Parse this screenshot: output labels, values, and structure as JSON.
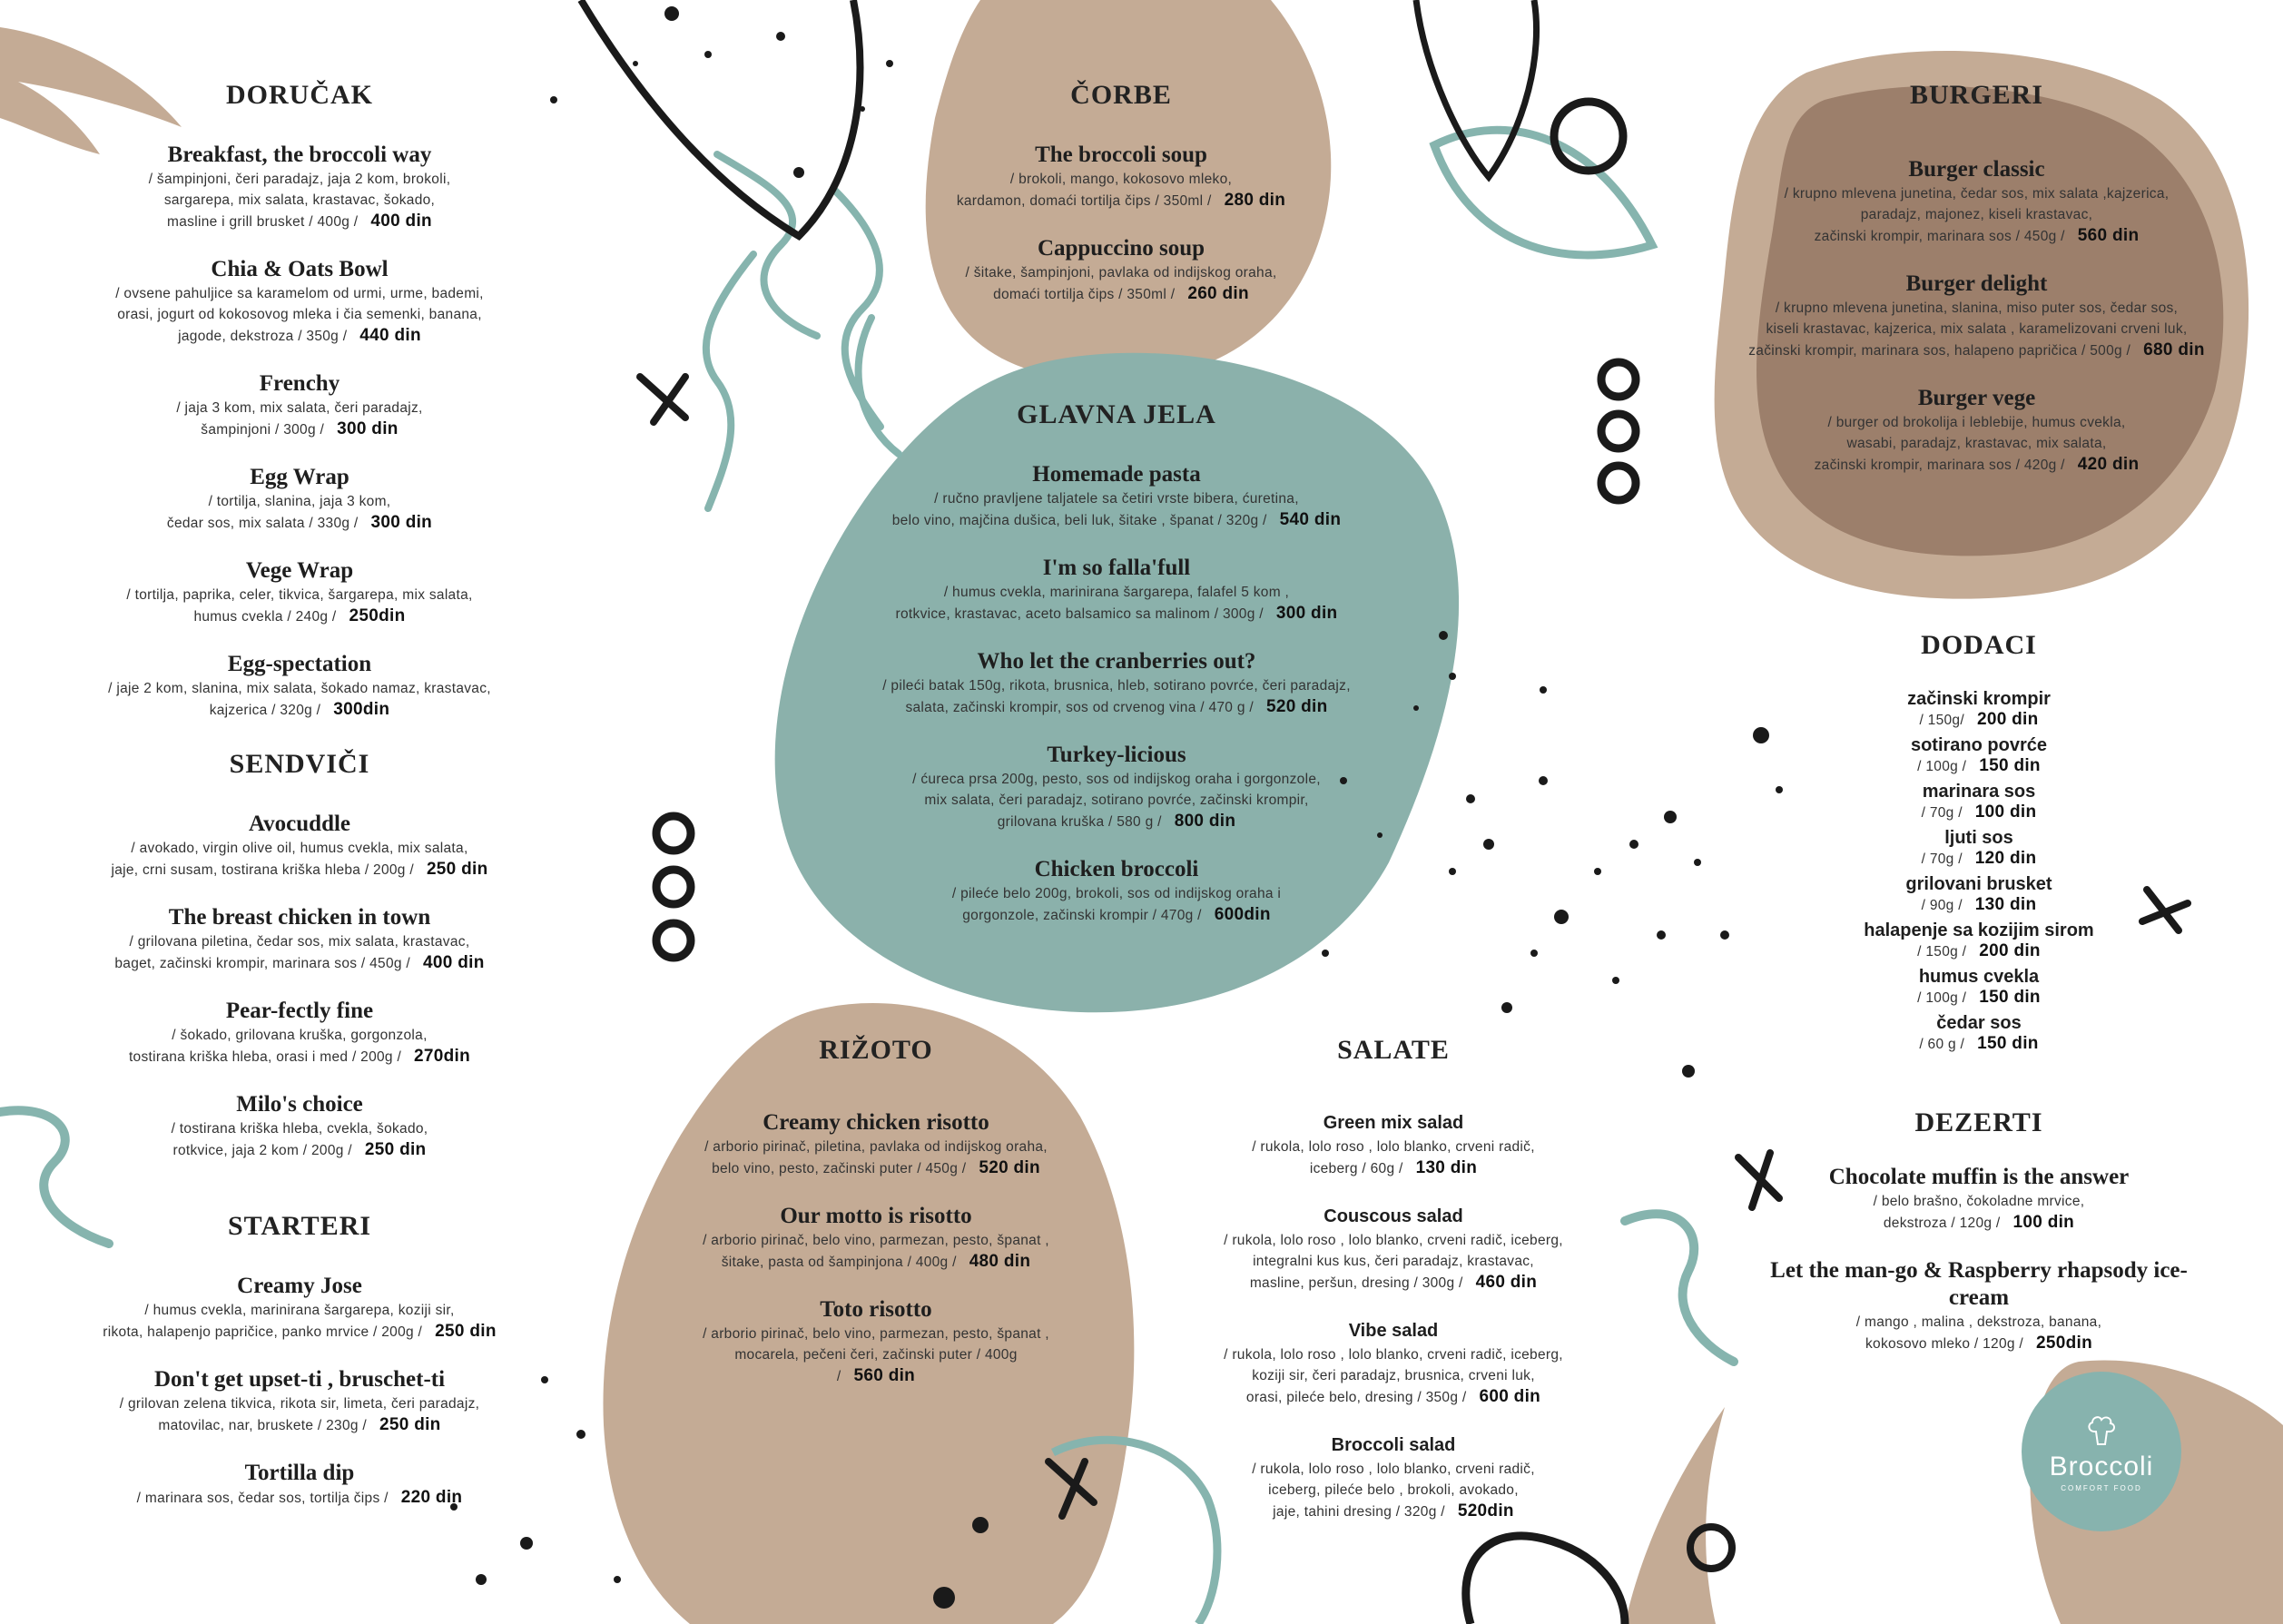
{
  "colors": {
    "beige": "#c4ab95",
    "brown": "#9c7f6b",
    "teal": "#8bb1ab",
    "teal_line": "#86b4ae",
    "ink": "#1a1a1a"
  },
  "sections": {
    "dorucak": {
      "title": "DORUČAK",
      "items": [
        {
          "name": "Breakfast, the broccoli way",
          "lines": [
            "/ šampinjoni, čeri paradajz, jaja 2 kom, brokoli,",
            "sargarepa, mix salata, krastavac, šokado,",
            "masline i grill brusket / 400g /"
          ],
          "price": "400 din"
        },
        {
          "name": "Chia & Oats Bowl",
          "lines": [
            "/ ovsene pahuljice sa karamelom od urmi, urme, bademi,",
            "orasi, jogurt od kokosovog mleka i čia semenki, banana,",
            "jagode, dekstroza / 350g /"
          ],
          "price": "440 din"
        },
        {
          "name": "Frenchy",
          "lines": [
            "/ jaja 3 kom, mix salata, čeri paradajz,",
            "šampinjoni / 300g /"
          ],
          "price": "300 din"
        },
        {
          "name": "Egg Wrap",
          "lines": [
            "/ tortilja, slanina, jaja 3 kom,",
            "čedar sos, mix salata / 330g /"
          ],
          "price": "300 din"
        },
        {
          "name": "Vege Wrap",
          "lines": [
            "/ tortilja, paprika, celer, tikvica, šargarepa, mix salata,",
            "humus cvekla / 240g /"
          ],
          "price": "250din"
        },
        {
          "name": "Egg-spectation",
          "lines": [
            "/ jaje 2 kom, slanina, mix salata, šokado namaz, krastavac,",
            "kajzerica / 320g /"
          ],
          "price": "300din"
        }
      ]
    },
    "sendvici": {
      "title": "SENDVIČI",
      "items": [
        {
          "name": "Avocuddle",
          "lines": [
            "/ avokado, virgin olive oil, humus cvekla, mix salata,",
            "jaje, crni susam, tostirana kriška hleba  / 200g /"
          ],
          "price": "250 din"
        },
        {
          "name": "The breast chicken in town",
          "lines": [
            "/ grilovana piletina, čedar sos, mix salata, krastavac,",
            "baget, začinski krompir, marinara sos / 450g /"
          ],
          "price": "400 din"
        },
        {
          "name": "Pear-fectly fine",
          "lines": [
            "/ šokado, grilovana kruška, gorgonzola,",
            "tostirana kriška hleba, orasi i med / 200g /"
          ],
          "price": "270din"
        },
        {
          "name": "Milo's choice",
          "lines": [
            "/ tostirana kriška hleba, cvekla, šokado,",
            "rotkvice, jaja 2 kom / 200g /"
          ],
          "price": "250 din"
        }
      ]
    },
    "starteri": {
      "title": "STARTERI",
      "items": [
        {
          "name": "Creamy Jose",
          "lines": [
            "/ humus cvekla, marinirana šargarepa, koziji sir,",
            "rikota, halapenjo papričice, panko mrvice / 200g /"
          ],
          "price": "250 din"
        },
        {
          "name": "Don't get upset-ti , bruschet-ti",
          "lines": [
            "/ grilovan zelena tikvica, rikota sir, limeta, čeri paradajz,",
            "matovilac, nar, bruskete / 230g /"
          ],
          "price": "250 din"
        },
        {
          "name": "Tortilla dip",
          "lines": [
            "/ marinara sos, čedar sos, tortilja čips /"
          ],
          "price": "220 din"
        }
      ]
    },
    "corbe": {
      "title": "ČORBE",
      "items": [
        {
          "name": "The broccoli soup",
          "lines": [
            "/ brokoli, mango, kokosovo mleko,",
            "kardamon, domaći tortilja čips / 350ml /"
          ],
          "price": "280 din"
        },
        {
          "name": "Cappuccino soup",
          "lines": [
            "/ šitake, šampinjoni, pavlaka od indijskog oraha,",
            "domaći tortilja čips / 350ml /"
          ],
          "price": "260 din"
        }
      ]
    },
    "glavna": {
      "title": "GLAVNA JELA",
      "items": [
        {
          "name": "Homemade pasta",
          "lines": [
            "/ ručno pravljene taljatele sa četiri vrste bibera, ćuretina,",
            "belo vino, majčina dušica, beli luk, šitake , španat / 320g /"
          ],
          "price": "540 din"
        },
        {
          "name": "I'm so falla'full",
          "lines": [
            "/ humus cvekla, marinirana šargarepa, falafel 5 kom ,",
            "rotkvice, krastavac, aceto balsamico sa malinom / 300g /"
          ],
          "price": "300 din"
        },
        {
          "name": "Who let the cranberries out?",
          "lines": [
            "/ pileći batak 150g, rikota, brusnica, hleb, sotirano povrće, čeri paradajz,",
            "salata, začinski krompir, sos od crvenog vina / 470 g /"
          ],
          "price": "520 din"
        },
        {
          "name": "Turkey-licious",
          "lines": [
            "/ ćureca prsa 200g, pesto, sos od indijskog oraha i gorgonzole,",
            "mix salata, čeri paradajz, sotirano povrće, začinski krompir,",
            "grilovana kruška  / 580 g /"
          ],
          "price": "800 din"
        },
        {
          "name": "Chicken broccoli",
          "lines": [
            "/ pileće belo 200g, brokoli, sos od indijskog oraha i",
            "gorgonzole, začinski krompir / 470g /"
          ],
          "price": "600din"
        }
      ]
    },
    "burgeri": {
      "title": "BURGERI",
      "items": [
        {
          "name": "Burger classic",
          "lines": [
            "/ krupno mlevena junetina, čedar sos, mix salata ,kajzerica,",
            "paradajz, majonez, kiseli krastavac,",
            "začinski krompir, marinara sos / 450g /"
          ],
          "price": "560 din"
        },
        {
          "name": "Burger delight",
          "lines": [
            "/ krupno mlevena junetina, slanina, miso puter sos, čedar sos,",
            "kiseli krastavac, kajzerica, mix salata , karamelizovani crveni luk,",
            "začinski krompir, marinara sos, halapeno papričica / 500g /"
          ],
          "price": "680 din"
        },
        {
          "name": "Burger vege",
          "lines": [
            "/ burger od brokolija i leblebije, humus cvekla,",
            "wasabi, paradajz, krastavac, mix salata,",
            "začinski krompir, marinara sos / 420g /"
          ],
          "price": "420 din"
        }
      ]
    },
    "dodaci": {
      "title": "DODACI",
      "items": [
        {
          "name": "začinski krompir",
          "lines": [
            "/ 150g/"
          ],
          "price": "200 din"
        },
        {
          "name": "sotirano povrće",
          "lines": [
            "/ 100g /"
          ],
          "price": "150 din"
        },
        {
          "name": "marinara sos",
          "lines": [
            "/ 70g /"
          ],
          "price": "100 din"
        },
        {
          "name": "ljuti sos",
          "lines": [
            "/ 70g /"
          ],
          "price": "120 din"
        },
        {
          "name": "grilovani brusket",
          "lines": [
            "/ 90g /"
          ],
          "price": "130 din"
        },
        {
          "name": "halapenje sa kozijim sirom",
          "lines": [
            "/ 150g /"
          ],
          "price": "200 din"
        },
        {
          "name": "humus cvekla",
          "lines": [
            "/ 100g /"
          ],
          "price": "150 din"
        },
        {
          "name": "čedar sos",
          "lines": [
            "/ 60 g /"
          ],
          "price": "150 din"
        }
      ]
    },
    "dezerti": {
      "title": "DEZERTI",
      "items": [
        {
          "name": "Chocolate muffin is the answer",
          "lines": [
            "/ belo brašno, čokoladne mrvice,",
            "dekstroza / 120g /"
          ],
          "price": "100 din"
        },
        {
          "name": "Let the man-go & Raspberry rhapsody ice-cream",
          "lines": [
            "/ mango , malina , dekstroza, banana,",
            "kokosovo mleko / 120g /"
          ],
          "price": "250din"
        }
      ]
    },
    "rizoto": {
      "title": "RIŽOTO",
      "items": [
        {
          "name": "Creamy chicken risotto",
          "lines": [
            "/ arborio pirinač, piletina, pavlaka od indijskog oraha,",
            "belo vino, pesto, začinski puter  / 450g /"
          ],
          "price": "520 din"
        },
        {
          "name": "Our motto is risotto",
          "lines": [
            "/ arborio pirinač, belo vino, parmezan, pesto, španat ,",
            "šitake, pasta od šampinjona / 400g /"
          ],
          "price": "480 din"
        },
        {
          "name": "Toto risotto",
          "lines": [
            "/ arborio pirinač, belo vino, parmezan, pesto, španat ,",
            "mocarela, pečeni čeri, začinski puter / 400g /"
          ],
          "price": "560 din"
        }
      ]
    },
    "salate": {
      "title": "SALATE",
      "items": [
        {
          "name": "Green mix salad",
          "lines": [
            "/ rukola, lolo roso , lolo blanko, crveni radič,",
            "iceberg / 60g /"
          ],
          "price": "130 din"
        },
        {
          "name": "Couscous salad",
          "lines": [
            "/ rukola, lolo roso , lolo blanko, crveni radič, iceberg,",
            "integralni kus kus, čeri paradajz, krastavac,",
            "masline, peršun, dresing / 300g /"
          ],
          "price": "460 din"
        },
        {
          "name": "Vibe salad",
          "lines": [
            "/ rukola, lolo roso , lolo blanko, crveni radič, iceberg,",
            "koziji sir, čeri paradajz, brusnica, crveni luk,",
            "orasi, pileće belo, dresing / 350g /"
          ],
          "price": "600 din"
        },
        {
          "name": "Broccoli salad",
          "lines": [
            "/ rukola, lolo roso , lolo blanko, crveni radič,",
            "iceberg, pileće belo , brokoli, avokado,",
            "jaje, tahini dresing / 320g /"
          ],
          "price": "520din"
        }
      ]
    }
  },
  "logo": {
    "name": "Broccoli",
    "subtitle": "COMFORT FOOD"
  }
}
